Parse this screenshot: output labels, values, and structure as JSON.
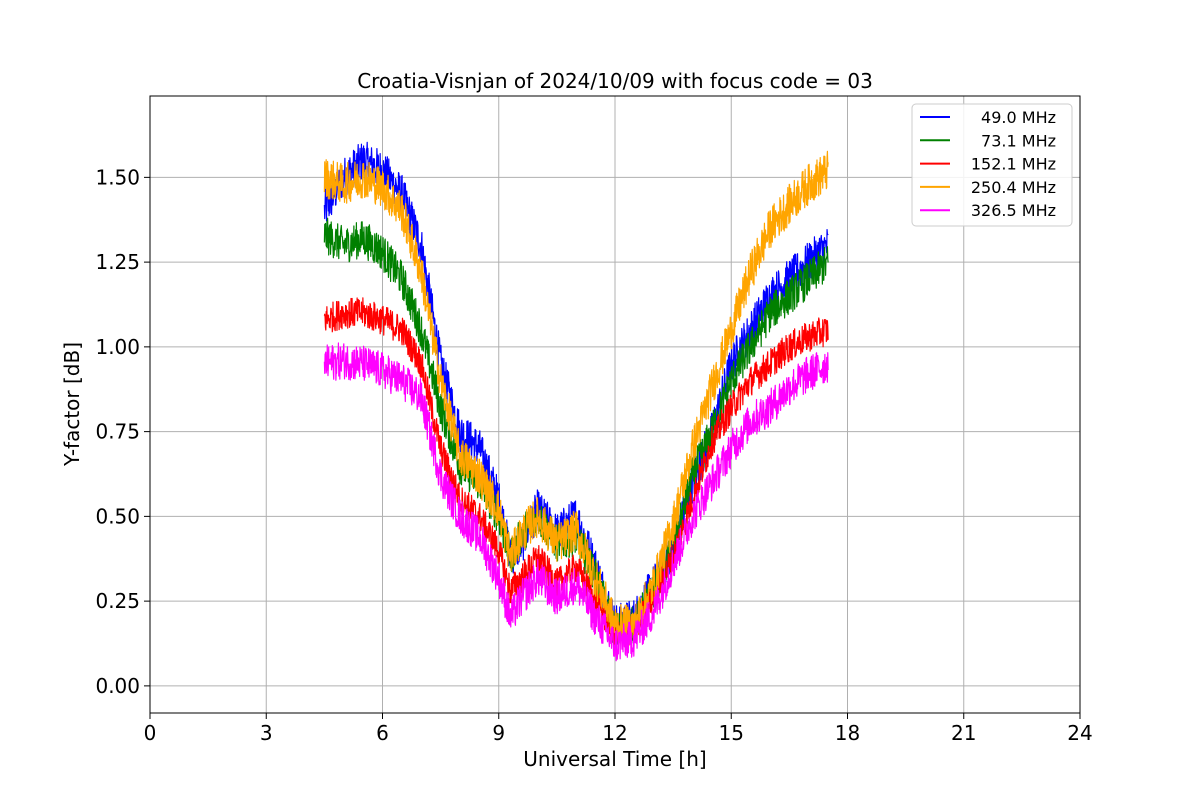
{
  "chart_data": {
    "type": "line",
    "title": "Croatia-Visnjan of 2024/10/09 with focus code = 03",
    "xlabel": "Universal Time [h]",
    "ylabel": "Y-factor [dB]",
    "xlim": [
      0,
      24
    ],
    "ylim": [
      -0.08,
      1.74
    ],
    "xticks": [
      0,
      3,
      6,
      9,
      12,
      15,
      18,
      21,
      24
    ],
    "yticks": [
      0.0,
      0.25,
      0.5,
      0.75,
      1.0,
      1.25,
      1.5
    ],
    "xtick_labels": [
      "0",
      "3",
      "6",
      "9",
      "12",
      "15",
      "18",
      "21",
      "24"
    ],
    "ytick_labels": [
      "0.00",
      "0.25",
      "0.50",
      "0.75",
      "1.00",
      "1.25",
      "1.50"
    ],
    "grid": true,
    "legend_position": "top-right",
    "series": [
      {
        "name": "49.0 MHz",
        "color": "#0000ff",
        "noise": 0.06,
        "x": [
          4.5,
          5.0,
          5.5,
          6.0,
          6.5,
          7.0,
          7.5,
          8.0,
          8.5,
          9.0,
          9.3,
          9.6,
          10.0,
          10.5,
          11.0,
          11.5,
          12.0,
          12.5,
          13.0,
          13.5,
          14.0,
          14.5,
          15.0,
          15.5,
          16.0,
          16.5,
          17.0,
          17.5
        ],
        "y": [
          1.4,
          1.5,
          1.55,
          1.52,
          1.45,
          1.3,
          0.95,
          0.75,
          0.7,
          0.55,
          0.38,
          0.42,
          0.52,
          0.45,
          0.5,
          0.35,
          0.18,
          0.2,
          0.3,
          0.4,
          0.6,
          0.75,
          0.95,
          1.05,
          1.15,
          1.2,
          1.25,
          1.3
        ]
      },
      {
        "name": "73.1 MHz",
        "color": "#008000",
        "noise": 0.055,
        "x": [
          4.5,
          5.0,
          5.5,
          6.0,
          6.5,
          7.0,
          7.5,
          8.0,
          8.5,
          9.0,
          9.3,
          9.6,
          10.0,
          10.5,
          11.0,
          11.5,
          12.0,
          12.5,
          13.0,
          13.5,
          14.0,
          14.5,
          15.0,
          15.5,
          16.0,
          16.5,
          17.0,
          17.5
        ],
        "y": [
          1.33,
          1.3,
          1.32,
          1.28,
          1.2,
          1.05,
          0.82,
          0.65,
          0.6,
          0.5,
          0.38,
          0.45,
          0.5,
          0.42,
          0.44,
          0.32,
          0.16,
          0.18,
          0.28,
          0.4,
          0.62,
          0.75,
          0.9,
          1.0,
          1.1,
          1.15,
          1.2,
          1.25
        ]
      },
      {
        "name": "152.1 MHz",
        "color": "#ff0000",
        "noise": 0.045,
        "x": [
          4.5,
          5.0,
          5.5,
          6.0,
          6.5,
          7.0,
          7.5,
          8.0,
          8.5,
          9.0,
          9.3,
          9.6,
          10.0,
          10.5,
          11.0,
          11.5,
          12.0,
          12.5,
          13.0,
          13.5,
          14.0,
          14.5,
          15.0,
          15.5,
          16.0,
          16.5,
          17.0,
          17.5
        ],
        "y": [
          1.08,
          1.1,
          1.1,
          1.08,
          1.05,
          0.95,
          0.7,
          0.55,
          0.5,
          0.4,
          0.28,
          0.32,
          0.38,
          0.3,
          0.35,
          0.25,
          0.15,
          0.17,
          0.26,
          0.38,
          0.55,
          0.72,
          0.82,
          0.9,
          0.95,
          1.0,
          1.03,
          1.05
        ]
      },
      {
        "name": "250.4 MHz",
        "color": "#ffa500",
        "noise": 0.06,
        "x": [
          4.5,
          5.0,
          5.5,
          6.0,
          6.5,
          7.0,
          7.5,
          8.0,
          8.5,
          9.0,
          9.3,
          9.6,
          10.0,
          10.5,
          11.0,
          11.5,
          12.0,
          12.5,
          13.0,
          13.5,
          14.0,
          14.5,
          15.0,
          15.5,
          16.0,
          16.5,
          17.0,
          17.5
        ],
        "y": [
          1.5,
          1.48,
          1.5,
          1.47,
          1.4,
          1.22,
          0.9,
          0.68,
          0.62,
          0.52,
          0.38,
          0.45,
          0.5,
          0.42,
          0.46,
          0.32,
          0.18,
          0.18,
          0.3,
          0.48,
          0.7,
          0.88,
          1.05,
          1.22,
          1.35,
          1.42,
          1.48,
          1.52
        ]
      },
      {
        "name": "326.5 MHz",
        "color": "#ff00ff",
        "noise": 0.055,
        "x": [
          4.5,
          5.0,
          5.5,
          6.0,
          6.5,
          7.0,
          7.5,
          8.0,
          8.5,
          9.0,
          9.3,
          9.6,
          10.0,
          10.5,
          11.0,
          11.5,
          12.0,
          12.5,
          13.0,
          13.5,
          14.0,
          14.5,
          15.0,
          15.5,
          16.0,
          16.5,
          17.0,
          17.5
        ],
        "y": [
          0.95,
          0.96,
          0.95,
          0.93,
          0.9,
          0.85,
          0.62,
          0.5,
          0.44,
          0.32,
          0.2,
          0.26,
          0.32,
          0.26,
          0.3,
          0.2,
          0.12,
          0.14,
          0.22,
          0.36,
          0.5,
          0.6,
          0.7,
          0.78,
          0.82,
          0.88,
          0.92,
          0.95
        ]
      }
    ]
  }
}
